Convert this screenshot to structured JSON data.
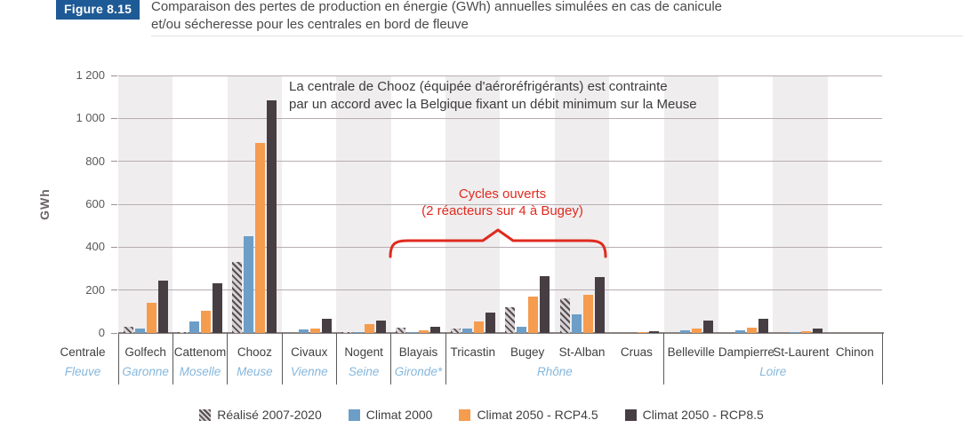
{
  "header": {
    "badge": "Figure 8.15",
    "title_line1": "Comparaison des pertes de production en énergie (GWh) annuelles simulées en cas de canicule",
    "title_line2": "et/ou sécheresse pour les centrales en bord de fleuve"
  },
  "annotations": {
    "chooz_line1": "La centrale de Chooz (équipée d'aéroréfrigérants) est contrainte",
    "chooz_line2": "par un accord avec la Belgique fixant un débit minimum sur la Meuse",
    "cycles_line1": "Cycles ouverts",
    "cycles_line2": "(2 réacteurs sur 4 à Bugey)",
    "accent_red": "#e02a1f"
  },
  "chart_data": {
    "type": "bar",
    "title": "Comparaison des pertes de production en énergie (GWh) annuelles simulées en cas de canicule et/ou sécheresse pour les centrales en bord de fleuve",
    "ylabel": "GWh",
    "ylim": [
      0,
      1200
    ],
    "yticks": [
      "0",
      "200",
      "400",
      "600",
      "800",
      "1 000",
      "1 200"
    ],
    "grid": true,
    "legend_position": "bottom",
    "axis_header": {
      "plant": "Centrale",
      "river": "Fleuve"
    },
    "columns": [
      {
        "plant": "Golfech",
        "river": "Garonne"
      },
      {
        "plant": "Cattenom",
        "river": "Moselle"
      },
      {
        "plant": "Chooz",
        "river": "Meuse"
      },
      {
        "plant": "Civaux",
        "river": "Vienne"
      },
      {
        "plant": "Nogent",
        "river": "Seine"
      },
      {
        "plant": "Blayais",
        "river": "Gironde*"
      },
      {
        "plant": "Tricastin"
      },
      {
        "plant": "Bugey"
      },
      {
        "plant": "St-Alban"
      },
      {
        "plant": "Cruas"
      },
      {
        "plant": "Belleville"
      },
      {
        "plant": "Dampierre"
      },
      {
        "plant": "St-Laurent"
      },
      {
        "plant": "Chinon"
      }
    ],
    "river_groups": [
      {
        "label": "Rhône",
        "start": 6,
        "end": 9
      },
      {
        "label": "Loire",
        "start": 10,
        "end": 13
      }
    ],
    "separators_at_column_boundaries": [
      0,
      1,
      2,
      3,
      4,
      5,
      6,
      10,
      14
    ],
    "series": [
      {
        "name": "Réalisé 2007-2020",
        "hatch": true,
        "color": "#d7d2d4",
        "values": [
          27,
          5,
          330,
          0,
          3,
          23,
          20,
          120,
          160,
          0,
          0,
          2,
          0,
          0
        ]
      },
      {
        "name": "Climat 2000",
        "hatch": false,
        "color": "#6d9ec7",
        "values": [
          20,
          55,
          450,
          15,
          6,
          5,
          20,
          27,
          85,
          0,
          12,
          13,
          4,
          0
        ]
      },
      {
        "name": "Climat 2050 - RCP4.5",
        "hatch": false,
        "color": "#f59c4f",
        "values": [
          140,
          105,
          885,
          20,
          40,
          14,
          55,
          170,
          178,
          5,
          21,
          25,
          8,
          0
        ]
      },
      {
        "name": "Climat 2050 - RCP8.5",
        "hatch": false,
        "color": "#473e43",
        "values": [
          245,
          232,
          1085,
          65,
          58,
          27,
          95,
          265,
          262,
          8,
          58,
          65,
          20,
          0
        ]
      }
    ],
    "band_color": "#efedee"
  }
}
